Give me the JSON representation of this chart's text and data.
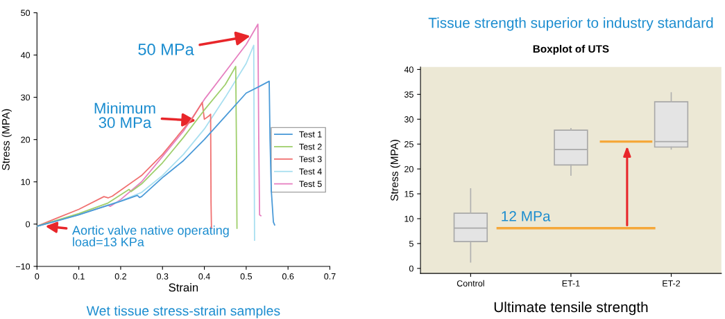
{
  "chart_data": [
    {
      "type": "line",
      "xlabel": "Strain",
      "ylabel": "Stress (MPA)",
      "xlim": [
        0,
        0.7
      ],
      "xticks": [
        0,
        0.1,
        0.2,
        0.3,
        0.4,
        0.5,
        0.6,
        0.7
      ],
      "ylim": [
        -10,
        50
      ],
      "yticks": [
        {
          "value": -10,
          "label": "−10"
        },
        0,
        10,
        20,
        30,
        40,
        50
      ],
      "grid": false,
      "legend": "center right",
      "marker": "none",
      "line_style": "solid",
      "series": [
        {
          "name": "Test 1",
          "color": "#4a9ad8",
          "x": [
            0,
            0.05,
            0.1,
            0.15,
            0.2,
            0.24,
            0.245,
            0.25,
            0.3,
            0.35,
            0.4,
            0.45,
            0.5,
            0.53,
            0.555,
            0.557,
            0.56,
            0.565,
            0.568
          ],
          "values": [
            -0.5,
            0.8,
            2.2,
            3.8,
            5.4,
            6.8,
            6.3,
            6.5,
            11,
            15,
            20,
            25.5,
            31,
            32.5,
            33.8,
            20,
            8,
            0.5,
            -0.2
          ]
        },
        {
          "name": "Test 2",
          "color": "#9fcf6c",
          "x": [
            0,
            0.1,
            0.17,
            0.22,
            0.225,
            0.25,
            0.3,
            0.35,
            0.4,
            0.45,
            0.475,
            0.477,
            0.478
          ],
          "values": [
            -0.5,
            2.5,
            5,
            8.2,
            7.7,
            9.5,
            14.5,
            20.5,
            27,
            33,
            37.3,
            15,
            -1
          ]
        },
        {
          "name": "Test 3",
          "color": "#f07070",
          "x": [
            0,
            0.05,
            0.1,
            0.16,
            0.17,
            0.18,
            0.25,
            0.3,
            0.35,
            0.37,
            0.395,
            0.4,
            0.41,
            0.415,
            0.416,
            0.417
          ],
          "values": [
            -0.5,
            1.5,
            3.5,
            6.5,
            6.2,
            6.6,
            11.5,
            16.5,
            22.5,
            24.8,
            28.8,
            24.8,
            25.5,
            26,
            5,
            -0.8
          ]
        },
        {
          "name": "Test 4",
          "color": "#a8dff0",
          "x": [
            0,
            0.1,
            0.2,
            0.25,
            0.3,
            0.35,
            0.4,
            0.45,
            0.5,
            0.518,
            0.519,
            0.52
          ],
          "values": [
            -0.5,
            2.2,
            5.5,
            7.5,
            11.5,
            16.5,
            22.5,
            30,
            38,
            42.3,
            20,
            -3.8
          ]
        },
        {
          "name": "Test 5",
          "color": "#e67fc0",
          "x": [
            0,
            0.1,
            0.17,
            0.175,
            0.2,
            0.25,
            0.3,
            0.35,
            0.4,
            0.45,
            0.5,
            0.528,
            0.53,
            0.532,
            0.535
          ],
          "values": [
            -0.5,
            2.3,
            4.5,
            4.2,
            5.8,
            10,
            16,
            22,
            29.5,
            36,
            42.5,
            47.3,
            20,
            2.2,
            2
          ]
        }
      ],
      "annotations": [
        {
          "text": "50 MPa",
          "x": 0.51,
          "y": 44.5
        },
        {
          "text": "Minimum\n30 MPa",
          "x": 0.38,
          "y": 24.5
        },
        {
          "text": "Aortic valve native operating\nload=13 KPa",
          "x": 0.02,
          "y": -0.5
        },
        "Wet tissue stress-strain samples"
      ]
    },
    {
      "type": "box",
      "title": "Tissue strength superior to industry standard",
      "subtitle": "Boxplot of UTS",
      "xlabel": "Ultimate tensile strength",
      "ylabel": "Stress (MPA)",
      "categories": [
        "Control",
        "ET-1",
        "ET-2"
      ],
      "ylim": [
        -1,
        40.5
      ],
      "yticks": [
        0,
        5,
        10,
        15,
        20,
        25,
        30,
        35,
        40
      ],
      "grid": false,
      "boxes": [
        {
          "low": 1.3,
          "q1": 5.4,
          "median": 8.1,
          "q3": 11.1,
          "high": 16.0
        },
        {
          "low": 18.75,
          "q1": 20.8,
          "median": 23.9,
          "q3": 27.8,
          "high": 28.1
        },
        {
          "low": 24.0,
          "q1": 24.4,
          "median": 25.5,
          "q3": 33.5,
          "high": 35.3
        }
      ],
      "ref_lines": [
        {
          "axis": "y",
          "value": 8.1,
          "label": "12 MPa",
          "color": "#f5a83a"
        },
        {
          "axis": "y",
          "value": 25.5,
          "label": null,
          "color": "#f5a83a"
        }
      ]
    }
  ]
}
